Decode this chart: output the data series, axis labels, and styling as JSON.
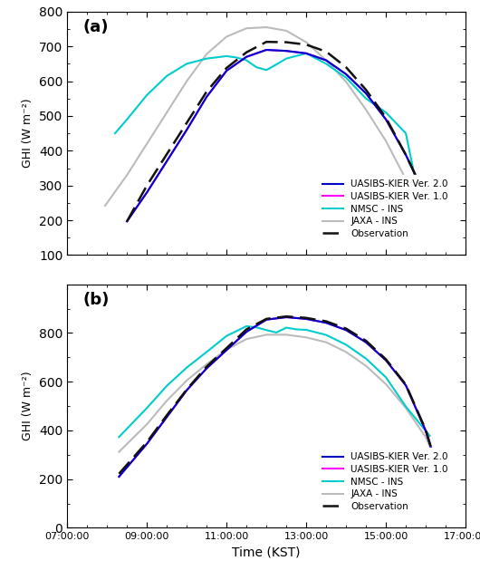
{
  "xlabel": "Time (KST)",
  "ylabel": "GHI (W m⁻²)",
  "panel_a": {
    "ylim": [
      100,
      800
    ],
    "yticks": [
      100,
      200,
      300,
      400,
      500,
      600,
      700,
      800
    ],
    "label": "(a)",
    "uasibs_v2": {
      "x": [
        8.5,
        9.0,
        9.5,
        10.0,
        10.5,
        11.0,
        11.5,
        12.0,
        12.5,
        13.0,
        13.5,
        14.0,
        14.5,
        15.0,
        15.5,
        16.0,
        16.35
      ],
      "y": [
        197,
        280,
        370,
        460,
        555,
        630,
        670,
        690,
        687,
        680,
        660,
        620,
        565,
        490,
        388,
        268,
        208
      ],
      "color": "#0000CC",
      "lw": 1.5
    },
    "uasibs_v1": {
      "x": [
        8.5,
        9.0,
        9.5,
        10.0,
        10.5,
        11.0,
        11.5,
        12.0,
        12.5,
        13.0,
        13.5,
        14.0,
        14.5,
        15.0,
        15.5,
        16.0,
        16.35
      ],
      "y": [
        197,
        280,
        370,
        460,
        555,
        630,
        670,
        690,
        687,
        680,
        660,
        620,
        565,
        490,
        388,
        268,
        208
      ],
      "color": "#FF00FF",
      "lw": 1.5
    },
    "nmsc": {
      "x": [
        8.2,
        8.5,
        9.0,
        9.5,
        10.0,
        10.5,
        11.0,
        11.25,
        11.5,
        11.75,
        12.0,
        12.25,
        12.5,
        13.0,
        13.5,
        14.0,
        14.5,
        15.0,
        15.5,
        15.85
      ],
      "y": [
        450,
        490,
        560,
        615,
        650,
        665,
        672,
        668,
        660,
        640,
        632,
        648,
        665,
        680,
        650,
        610,
        550,
        510,
        450,
        255
      ],
      "color": "#00CCCC",
      "lw": 1.5
    },
    "jaxa": {
      "x": [
        7.95,
        8.5,
        9.0,
        9.5,
        10.0,
        10.5,
        11.0,
        11.5,
        12.0,
        12.5,
        13.0,
        13.5,
        14.0,
        14.5,
        15.0,
        15.5,
        16.0
      ],
      "y": [
        242,
        330,
        420,
        510,
        600,
        678,
        728,
        752,
        755,
        745,
        712,
        660,
        598,
        518,
        428,
        318,
        262
      ],
      "color": "#BBBBBB",
      "lw": 1.5
    },
    "obs": {
      "x": [
        8.5,
        9.0,
        9.5,
        10.0,
        10.5,
        11.0,
        11.5,
        12.0,
        12.5,
        13.0,
        13.5,
        14.0,
        14.5,
        15.0,
        15.5,
        16.0,
        16.35
      ],
      "y": [
        197,
        300,
        390,
        480,
        570,
        638,
        683,
        713,
        712,
        705,
        685,
        640,
        575,
        495,
        388,
        268,
        208
      ],
      "color": "#111111",
      "lw": 1.8,
      "linestyle": "--"
    }
  },
  "panel_b": {
    "ylim": [
      0,
      1000
    ],
    "yticks": [
      0,
      200,
      400,
      600,
      800
    ],
    "label": "(b)",
    "uasibs_v2": {
      "x": [
        8.3,
        9.0,
        9.5,
        10.0,
        10.5,
        11.0,
        11.5,
        12.0,
        12.5,
        13.0,
        13.5,
        14.0,
        14.5,
        15.0,
        15.5,
        16.0,
        16.35
      ],
      "y": [
        210,
        345,
        455,
        565,
        655,
        730,
        805,
        855,
        865,
        858,
        842,
        812,
        762,
        688,
        585,
        398,
        213
      ],
      "color": "#0000CC",
      "lw": 1.5
    },
    "uasibs_v1": {
      "x": [
        8.3,
        9.0,
        9.5,
        10.0,
        10.5,
        11.0,
        11.5,
        12.0,
        12.5,
        13.0,
        13.5,
        14.0,
        14.5,
        15.0,
        15.5,
        16.0,
        16.35
      ],
      "y": [
        210,
        345,
        455,
        565,
        655,
        730,
        805,
        855,
        865,
        858,
        842,
        812,
        762,
        688,
        585,
        398,
        213
      ],
      "color": "#FF00FF",
      "lw": 1.5
    },
    "nmsc": {
      "x": [
        8.3,
        9.0,
        9.5,
        10.0,
        10.5,
        11.0,
        11.5,
        11.75,
        12.0,
        12.25,
        12.5,
        12.75,
        13.0,
        13.5,
        14.0,
        14.5,
        15.0,
        15.5,
        16.1
      ],
      "y": [
        373,
        492,
        583,
        658,
        722,
        788,
        828,
        823,
        812,
        802,
        822,
        815,
        813,
        792,
        752,
        695,
        618,
        498,
        378
      ],
      "color": "#00CCCC",
      "lw": 1.5
    },
    "jaxa": {
      "x": [
        8.3,
        9.0,
        9.5,
        10.0,
        10.5,
        11.0,
        11.5,
        12.0,
        12.5,
        13.0,
        13.5,
        14.0,
        14.5,
        15.0,
        15.5,
        16.0,
        16.35
      ],
      "y": [
        312,
        425,
        522,
        605,
        672,
        732,
        775,
        793,
        793,
        782,
        762,
        722,
        665,
        590,
        492,
        372,
        242
      ],
      "color": "#BBBBBB",
      "lw": 1.5
    },
    "obs": {
      "x": [
        8.3,
        9.0,
        9.5,
        10.0,
        10.5,
        11.0,
        11.5,
        12.0,
        12.5,
        13.0,
        13.5,
        14.0,
        14.5,
        15.0,
        15.5,
        16.0,
        16.35
      ],
      "y": [
        222,
        352,
        462,
        568,
        662,
        738,
        815,
        858,
        868,
        862,
        848,
        818,
        768,
        692,
        588,
        402,
        213
      ],
      "color": "#111111",
      "lw": 1.8,
      "linestyle": "--"
    }
  },
  "legend": {
    "labels": [
      "UASIBS-KIER Ver. 2.0",
      "UASIBS-KIER Ver. 1.0",
      "NMSC - INS",
      "JAXA - INS",
      "Observation"
    ],
    "colors": [
      "#0000CC",
      "#FF00FF",
      "#00CCCC",
      "#BBBBBB",
      "#111111"
    ],
    "linestyles": [
      "-",
      "-",
      "-",
      "-",
      "--"
    ]
  }
}
